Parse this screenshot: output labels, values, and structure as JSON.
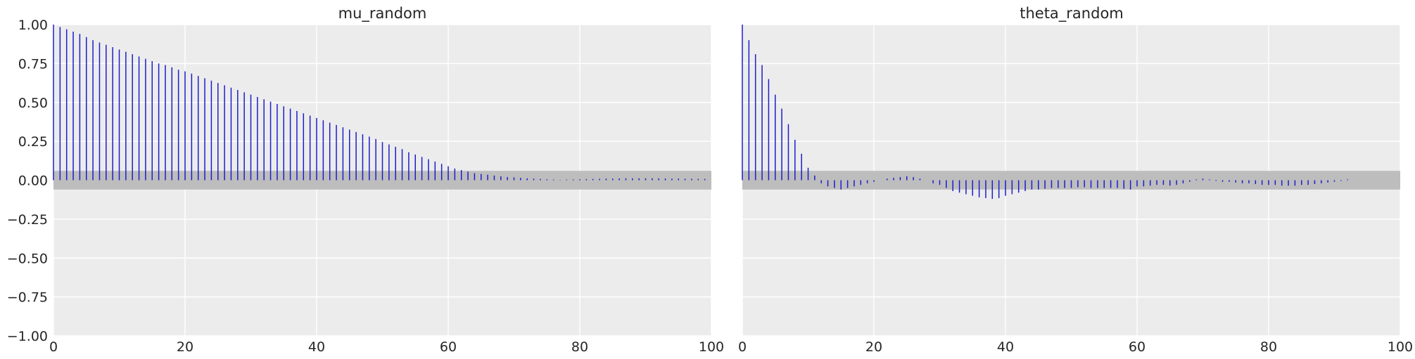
{
  "chart_data": [
    {
      "type": "bar",
      "subtype": "autocorrelation-stem",
      "title": "mu_random",
      "xlim": [
        0,
        100
      ],
      "ylim": [
        -1.0,
        1.0
      ],
      "xticks": [
        "0",
        "20",
        "40",
        "60",
        "80",
        "100"
      ],
      "yticks": [
        "1.00",
        "0.75",
        "0.50",
        "0.25",
        "0.00",
        "−0.25",
        "−0.50",
        "−0.75",
        "−1.00"
      ],
      "grid": true,
      "background_color": "#ececec",
      "stem_color": "#1d1dcc",
      "confidence_band": [
        -0.06,
        0.06
      ],
      "confidence_band_color": "#bdbdbd",
      "x": [
        0,
        1,
        2,
        3,
        4,
        5,
        6,
        7,
        8,
        9,
        10,
        11,
        12,
        13,
        14,
        15,
        16,
        17,
        18,
        19,
        20,
        21,
        22,
        23,
        24,
        25,
        26,
        27,
        28,
        29,
        30,
        31,
        32,
        33,
        34,
        35,
        36,
        37,
        38,
        39,
        40,
        41,
        42,
        43,
        44,
        45,
        46,
        47,
        48,
        49,
        50,
        51,
        52,
        53,
        54,
        55,
        56,
        57,
        58,
        59,
        60,
        61,
        62,
        63,
        64,
        65,
        66,
        67,
        68,
        69,
        70,
        71,
        72,
        73,
        74,
        75,
        76,
        77,
        78,
        79,
        80,
        81,
        82,
        83,
        84,
        85,
        86,
        87,
        88,
        89,
        90,
        91,
        92,
        93,
        94,
        95,
        96,
        97,
        98,
        99
      ],
      "values": [
        1.0,
        0.985,
        0.97,
        0.955,
        0.94,
        0.92,
        0.9,
        0.885,
        0.87,
        0.855,
        0.84,
        0.825,
        0.81,
        0.795,
        0.78,
        0.765,
        0.75,
        0.74,
        0.725,
        0.71,
        0.7,
        0.685,
        0.67,
        0.655,
        0.64,
        0.625,
        0.61,
        0.595,
        0.58,
        0.565,
        0.55,
        0.535,
        0.52,
        0.505,
        0.49,
        0.475,
        0.46,
        0.445,
        0.43,
        0.415,
        0.4,
        0.385,
        0.37,
        0.355,
        0.34,
        0.325,
        0.31,
        0.295,
        0.28,
        0.265,
        0.245,
        0.23,
        0.215,
        0.2,
        0.18,
        0.165,
        0.15,
        0.135,
        0.12,
        0.105,
        0.09,
        0.075,
        0.065,
        0.055,
        0.045,
        0.04,
        0.035,
        0.03,
        0.025,
        0.02,
        0.018,
        0.015,
        0.012,
        0.01,
        0.008,
        0.006,
        0.004,
        0.002,
        0.004,
        0.005,
        0.006,
        0.007,
        0.008,
        0.009,
        0.01,
        0.01,
        0.011,
        0.012,
        0.012,
        0.012,
        0.012,
        0.012,
        0.011,
        0.011,
        0.01,
        0.01,
        0.009,
        0.009,
        0.008,
        0.008
      ]
    },
    {
      "type": "bar",
      "subtype": "autocorrelation-stem",
      "title": "theta_random",
      "xlim": [
        0,
        100
      ],
      "ylim": [
        -1.0,
        1.0
      ],
      "xticks": [
        "0",
        "20",
        "40",
        "60",
        "80",
        "100"
      ],
      "grid": true,
      "background_color": "#ececec",
      "stem_color": "#1d1dcc",
      "confidence_band": [
        -0.06,
        0.06
      ],
      "confidence_band_color": "#bdbdbd",
      "x": [
        0,
        1,
        2,
        3,
        4,
        5,
        6,
        7,
        8,
        9,
        10,
        11,
        12,
        13,
        14,
        15,
        16,
        17,
        18,
        19,
        20,
        21,
        22,
        23,
        24,
        25,
        26,
        27,
        28,
        29,
        30,
        31,
        32,
        33,
        34,
        35,
        36,
        37,
        38,
        39,
        40,
        41,
        42,
        43,
        44,
        45,
        46,
        47,
        48,
        49,
        50,
        51,
        52,
        53,
        54,
        55,
        56,
        57,
        58,
        59,
        60,
        61,
        62,
        63,
        64,
        65,
        66,
        67,
        68,
        69,
        70,
        71,
        72,
        73,
        74,
        75,
        76,
        77,
        78,
        79,
        80,
        81,
        82,
        83,
        84,
        85,
        86,
        87,
        88,
        89,
        90,
        91,
        92
      ],
      "values": [
        1.0,
        0.9,
        0.81,
        0.74,
        0.65,
        0.55,
        0.46,
        0.36,
        0.26,
        0.17,
        0.08,
        0.03,
        -0.02,
        -0.04,
        -0.05,
        -0.06,
        -0.05,
        -0.04,
        -0.03,
        -0.02,
        -0.01,
        0.0,
        0.01,
        0.015,
        0.02,
        0.025,
        0.02,
        0.01,
        0.0,
        -0.02,
        -0.03,
        -0.05,
        -0.07,
        -0.08,
        -0.09,
        -0.1,
        -0.11,
        -0.115,
        -0.12,
        -0.115,
        -0.1,
        -0.09,
        -0.08,
        -0.07,
        -0.06,
        -0.06,
        -0.055,
        -0.05,
        -0.05,
        -0.05,
        -0.05,
        -0.045,
        -0.045,
        -0.05,
        -0.05,
        -0.05,
        -0.05,
        -0.05,
        -0.055,
        -0.06,
        -0.04,
        -0.04,
        -0.035,
        -0.03,
        -0.03,
        -0.035,
        -0.03,
        -0.02,
        -0.01,
        0.005,
        0.01,
        0.005,
        -0.005,
        -0.01,
        -0.01,
        -0.015,
        -0.02,
        -0.02,
        -0.025,
        -0.03,
        -0.03,
        -0.03,
        -0.035,
        -0.035,
        -0.035,
        -0.03,
        -0.03,
        -0.025,
        -0.02,
        -0.015,
        -0.01,
        -0.005,
        0.005
      ]
    }
  ]
}
